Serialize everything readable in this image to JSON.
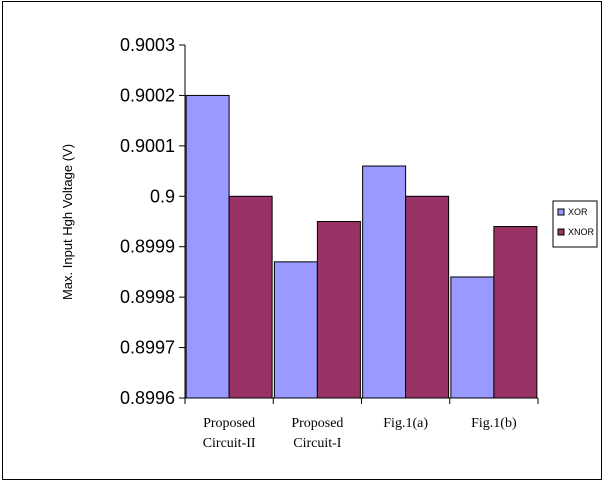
{
  "chart_data": {
    "type": "bar",
    "title": "",
    "xlabel": "",
    "ylabel": "Max. Input Hgh Voltage (V)",
    "categories": [
      [
        "Proposed",
        "Circuit-II"
      ],
      [
        "Proposed",
        "Circuit-I"
      ],
      [
        "Fig.1(a)"
      ],
      [
        "Fig.1(b)"
      ]
    ],
    "series": [
      {
        "name": "XOR",
        "color": "#9999ff",
        "values": [
          0.9002,
          0.89987,
          0.90006,
          0.89984
        ]
      },
      {
        "name": "XNOR",
        "color": "#993366",
        "values": [
          0.9,
          0.89995,
          0.9,
          0.89994
        ]
      }
    ],
    "ylim": [
      0.8996,
      0.9003
    ],
    "yticks": [
      "0.8996",
      "0.8997",
      "0.8998",
      "0.8999",
      "0.9",
      "0.9001",
      "0.9002",
      "0.9003"
    ],
    "grid": false,
    "legend_position": "right"
  }
}
